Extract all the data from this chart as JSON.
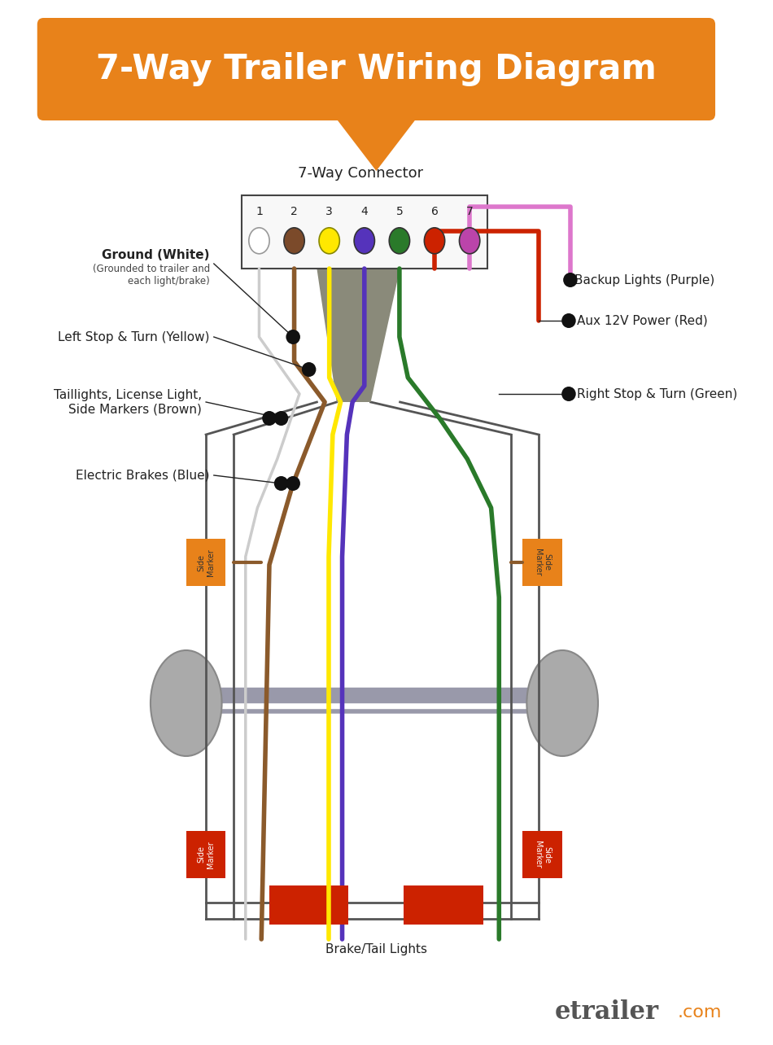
{
  "title": "7-Way Trailer Wiring Diagram",
  "title_color": "#FFFFFF",
  "title_bg_color": "#E8821A",
  "background_color": "#FFFFFF",
  "connector_label": "7-Way Connector",
  "pin_numbers": [
    "1",
    "2",
    "3",
    "4",
    "5",
    "6",
    "7"
  ],
  "pin_colors": [
    "#FFFFFF",
    "#7B4A2A",
    "#FFE800",
    "#5533BB",
    "#2A7A2A",
    "#CC2200",
    "#BB44AA"
  ],
  "pin_border_colors": [
    "#999999",
    "#333333",
    "#888800",
    "#333333",
    "#333333",
    "#333333",
    "#333333"
  ],
  "wire_colors": [
    "#CCCCCC",
    "#8B5A2B",
    "#FFE800",
    "#5533BB",
    "#2A7A2A",
    "#CC2200",
    "#DD77CC"
  ],
  "sheath_color": "#8A8A7A",
  "frame_color": "#555555",
  "wheel_color": "#AAAAAA",
  "orange_marker_color": "#E8821A",
  "red_marker_color": "#CC2200",
  "brake_light_color": "#CC2200",
  "footer_text": "etrailer",
  "footer_suffix": ".com",
  "footer_color": "#555555",
  "footer_suffix_color": "#E8821A",
  "brake_tail_label": "Brake/Tail Lights",
  "side_marker_label": "Side Marker"
}
